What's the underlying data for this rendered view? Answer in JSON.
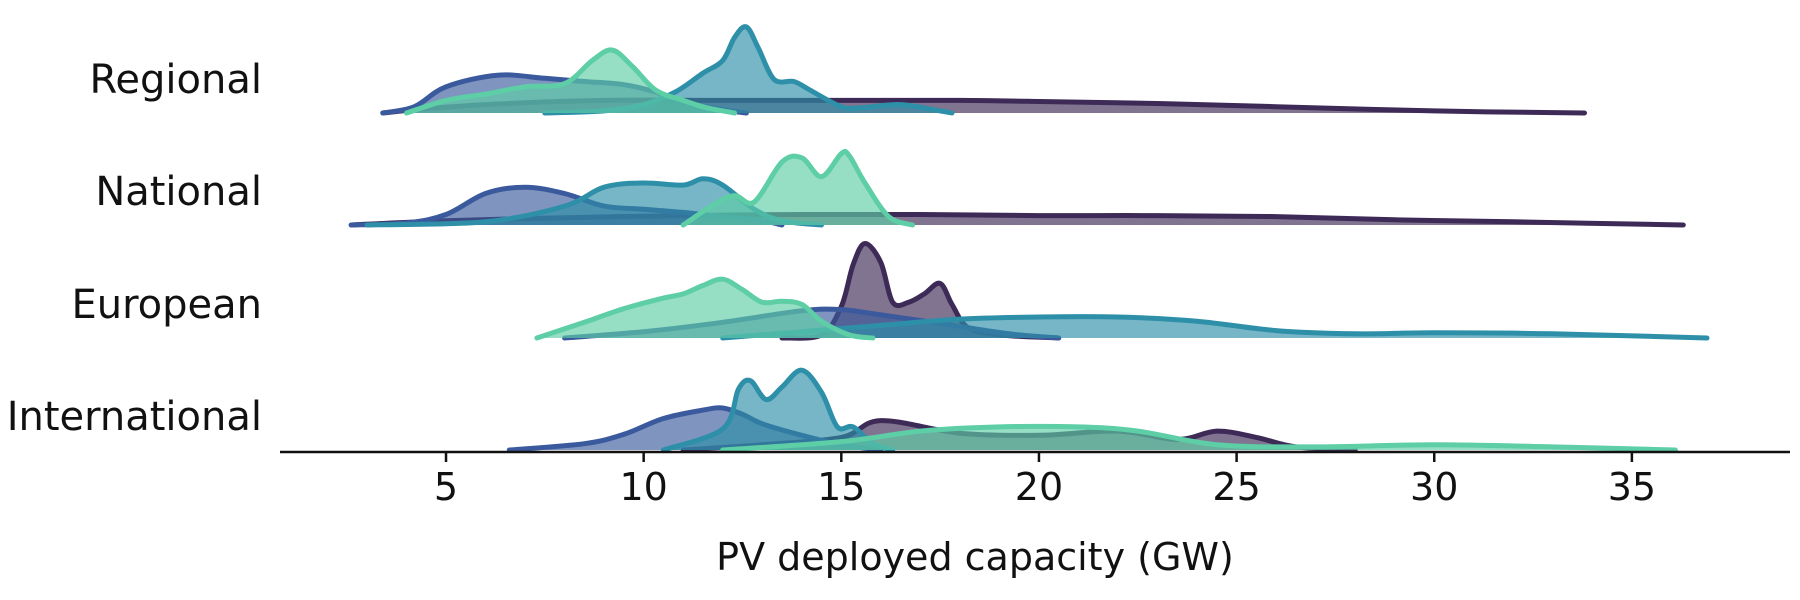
{
  "chart_data": {
    "type": "area",
    "subtype": "ridgeline",
    "title": "",
    "xlabel": "PV deployed capacity (GW)",
    "ylabel": "",
    "xlim": [
      0.8,
      39
    ],
    "xticks": [
      5,
      10,
      15,
      20,
      25,
      30,
      35
    ],
    "grid": false,
    "legend": "none",
    "rows": [
      {
        "name": "Regional",
        "series": [
          {
            "color": "#3d2a56",
            "x": [
              3.4,
              4.2,
              6.0,
              9.0,
              12.0,
              15.0,
              18.0,
              20.0,
              23.0,
              26.0,
              30.0,
              33.8
            ],
            "y": [
              0,
              0.03,
              0.08,
              0.12,
              0.12,
              0.12,
              0.12,
              0.11,
              0.09,
              0.06,
              0.02,
              0
            ]
          },
          {
            "color": "#3b5a9d",
            "x": [
              3.4,
              4.2,
              5.0,
              6.3,
              7.5,
              8.5,
              9.5,
              10.3,
              11.0,
              12.0,
              12.6
            ],
            "y": [
              0,
              0.06,
              0.25,
              0.36,
              0.33,
              0.3,
              0.27,
              0.2,
              0.1,
              0.03,
              0
            ]
          },
          {
            "color": "#2e8fa8",
            "x": [
              7.5,
              9.0,
              10.0,
              10.8,
              11.5,
              12.0,
              12.3,
              12.6,
              12.9,
              13.3,
              13.8,
              14.2,
              15.0,
              15.5,
              16.5,
              17.5,
              17.8
            ],
            "y": [
              0,
              0.02,
              0.08,
              0.2,
              0.38,
              0.5,
              0.72,
              0.82,
              0.62,
              0.32,
              0.3,
              0.22,
              0.06,
              0.05,
              0.08,
              0.02,
              0
            ]
          },
          {
            "color": "#5dcea6",
            "x": [
              4.0,
              5.0,
              6.0,
              7.0,
              8.0,
              8.7,
              9.2,
              9.7,
              10.3,
              11.0,
              11.6,
              12.3
            ],
            "y": [
              0,
              0.12,
              0.18,
              0.25,
              0.28,
              0.5,
              0.6,
              0.45,
              0.22,
              0.12,
              0.05,
              0
            ]
          }
        ]
      },
      {
        "name": "National",
        "series": [
          {
            "color": "#3d2a56",
            "x": [
              2.6,
              5.0,
              8.0,
              11.0,
              14.0,
              17.0,
              20.0,
              23.0,
              26.0,
              29.0,
              32.0,
              36.3
            ],
            "y": [
              0,
              0.04,
              0.07,
              0.09,
              0.1,
              0.1,
              0.09,
              0.09,
              0.08,
              0.05,
              0.03,
              0
            ]
          },
          {
            "color": "#3b5a9d",
            "x": [
              2.6,
              4.0,
              5.0,
              6.0,
              7.0,
              8.0,
              9.0,
              10.0,
              11.0,
              12.0,
              13.0,
              13.5
            ],
            "y": [
              0,
              0.02,
              0.1,
              0.3,
              0.36,
              0.3,
              0.18,
              0.15,
              0.12,
              0.08,
              0.04,
              0
            ]
          },
          {
            "color": "#2e8fa8",
            "x": [
              3.0,
              6.0,
              8.0,
              9.0,
              10.0,
              11.0,
              11.5,
              12.0,
              12.8,
              13.5,
              14.5
            ],
            "y": [
              0,
              0.03,
              0.18,
              0.36,
              0.4,
              0.38,
              0.44,
              0.38,
              0.15,
              0.04,
              0
            ]
          },
          {
            "color": "#5dcea6",
            "x": [
              11.0,
              11.8,
              12.3,
              12.8,
              13.5,
              14.0,
              14.5,
              15.0,
              15.2,
              15.6,
              16.2,
              16.8
            ],
            "y": [
              0,
              0.2,
              0.28,
              0.22,
              0.6,
              0.64,
              0.46,
              0.68,
              0.66,
              0.4,
              0.08,
              0
            ]
          }
        ]
      },
      {
        "name": "European",
        "series": [
          {
            "color": "#3d2a56",
            "x": [
              13.5,
              14.5,
              15.0,
              15.3,
              15.6,
              16.0,
              16.3,
              16.7,
              17.1,
              17.5,
              17.8,
              18.2,
              19.0,
              20.5
            ],
            "y": [
              0,
              0.03,
              0.3,
              0.7,
              0.9,
              0.72,
              0.34,
              0.34,
              0.42,
              0.52,
              0.32,
              0.1,
              0.03,
              0
            ]
          },
          {
            "color": "#3b5a9d",
            "x": [
              8.0,
              10.0,
              12.0,
              14.0,
              15.0,
              16.0,
              17.5,
              18.5,
              19.5,
              20.5
            ],
            "y": [
              0,
              0.06,
              0.15,
              0.26,
              0.27,
              0.22,
              0.14,
              0.08,
              0.03,
              0
            ]
          },
          {
            "color": "#2e8fa8",
            "x": [
              12.0,
              14.0,
              16.0,
              18.0,
              20.0,
              22.0,
              24.0,
              26.0,
              28.0,
              30.0,
              33.0,
              36.9
            ],
            "y": [
              0,
              0.06,
              0.12,
              0.18,
              0.2,
              0.2,
              0.16,
              0.07,
              0.04,
              0.05,
              0.04,
              0
            ]
          },
          {
            "color": "#5dcea6",
            "x": [
              7.3,
              8.5,
              9.5,
              10.5,
              11.0,
              11.5,
              12.0,
              12.5,
              13.0,
              13.5,
              14.0,
              14.5,
              15.2,
              15.8
            ],
            "y": [
              0,
              0.15,
              0.28,
              0.38,
              0.42,
              0.5,
              0.56,
              0.46,
              0.34,
              0.35,
              0.32,
              0.16,
              0.03,
              0
            ]
          }
        ]
      },
      {
        "name": "International",
        "series": [
          {
            "color": "#3d2a56",
            "x": [
              11.0,
              13.0,
              15.0,
              16.0,
              18.0,
              20.0,
              22.0,
              23.5,
              24.5,
              25.5,
              26.5,
              28.0
            ],
            "y": [
              0,
              0.05,
              0.12,
              0.28,
              0.16,
              0.14,
              0.18,
              0.1,
              0.18,
              0.12,
              0.03,
              0
            ]
          },
          {
            "color": "#3b5a9d",
            "x": [
              6.6,
              8.5,
              9.5,
              10.5,
              11.5,
              12.0,
              12.5,
              13.0,
              14.0,
              15.0,
              16.0
            ],
            "y": [
              0,
              0.06,
              0.15,
              0.3,
              0.38,
              0.4,
              0.34,
              0.25,
              0.14,
              0.05,
              0
            ]
          },
          {
            "color": "#2e8fa8",
            "x": [
              10.5,
              12.0,
              12.4,
              12.7,
              13.1,
              13.5,
              14.0,
              14.5,
              14.9,
              15.3,
              15.8,
              16.3
            ],
            "y": [
              0,
              0.2,
              0.58,
              0.66,
              0.48,
              0.6,
              0.76,
              0.55,
              0.22,
              0.22,
              0.06,
              0
            ]
          },
          {
            "color": "#5dcea6",
            "x": [
              12.0,
              15.0,
              17.0,
              19.0,
              21.0,
              22.5,
              24.5,
              27.0,
              30.0,
              33.0,
              36.1
            ],
            "y": [
              0,
              0.08,
              0.18,
              0.22,
              0.22,
              0.18,
              0.05,
              0.03,
              0.05,
              0.03,
              0
            ]
          }
        ]
      }
    ]
  }
}
